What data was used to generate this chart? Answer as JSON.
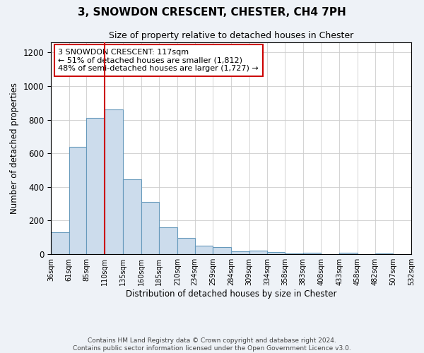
{
  "title": "3, SNOWDON CRESCENT, CHESTER, CH4 7PH",
  "subtitle": "Size of property relative to detached houses in Chester",
  "xlabel": "Distribution of detached houses by size in Chester",
  "ylabel": "Number of detached properties",
  "bar_color": "#ccdcec",
  "bar_edge_color": "#6699bb",
  "bins": [
    36,
    61,
    85,
    110,
    135,
    160,
    185,
    210,
    234,
    259,
    284,
    309,
    334,
    358,
    383,
    408,
    433,
    458,
    482,
    507,
    532
  ],
  "bin_labels": [
    "36sqm",
    "61sqm",
    "85sqm",
    "110sqm",
    "135sqm",
    "160sqm",
    "185sqm",
    "210sqm",
    "234sqm",
    "259sqm",
    "284sqm",
    "309sqm",
    "334sqm",
    "358sqm",
    "383sqm",
    "408sqm",
    "433sqm",
    "458sqm",
    "482sqm",
    "507sqm",
    "532sqm"
  ],
  "values": [
    130,
    640,
    810,
    860,
    445,
    310,
    158,
    95,
    50,
    40,
    15,
    22,
    12,
    5,
    10,
    0,
    10,
    0,
    5,
    0
  ],
  "vline_x": 110,
  "vline_color": "#cc0000",
  "ylim": [
    0,
    1260
  ],
  "yticks": [
    0,
    200,
    400,
    600,
    800,
    1000,
    1200
  ],
  "annotation_text": "3 SNOWDON CRESCENT: 117sqm\n← 51% of detached houses are smaller (1,812)\n48% of semi-detached houses are larger (1,727) →",
  "annotation_box_color": "#ffffff",
  "annotation_box_edge": "#cc0000",
  "footer_line1": "Contains HM Land Registry data © Crown copyright and database right 2024.",
  "footer_line2": "Contains public sector information licensed under the Open Government Licence v3.0.",
  "background_color": "#eef2f7",
  "plot_bg_color": "#ffffff"
}
